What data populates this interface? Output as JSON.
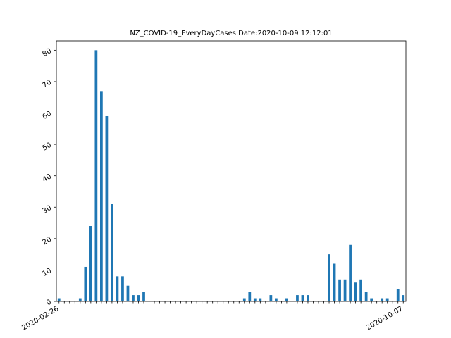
{
  "chart_data": {
    "type": "bar",
    "title": "NZ_COVID-19_EveryDayCases  Date:2020-10-09 12:12:01",
    "xlabel": "",
    "ylabel": "",
    "ylim": [
      0,
      83
    ],
    "yticks": [
      0,
      10,
      20,
      30,
      40,
      50,
      60,
      70,
      80
    ],
    "grid": false,
    "bar_color": "#1f77b4",
    "values": [
      1,
      0,
      0,
      0,
      1,
      11,
      24,
      80,
      67,
      59,
      31,
      8,
      8,
      5,
      2,
      2,
      3,
      0,
      0,
      0,
      0,
      0,
      0,
      0,
      0,
      0,
      0,
      0,
      0,
      0,
      0,
      0,
      0,
      0,
      0,
      1,
      3,
      1,
      1,
      0,
      2,
      1,
      0,
      1,
      0,
      2,
      2,
      2,
      0,
      0,
      0,
      15,
      12,
      7,
      7,
      18,
      6,
      7,
      3,
      1,
      0,
      1,
      1,
      0,
      4,
      2
    ],
    "first_date": "2020-02-26",
    "last_date": "2020-10-07",
    "first_category": "2020-02-26",
    "last_category": "2020-10-07",
    "visible_tick_labels": [
      "2020-02-26",
      "2020-10-07"
    ]
  }
}
